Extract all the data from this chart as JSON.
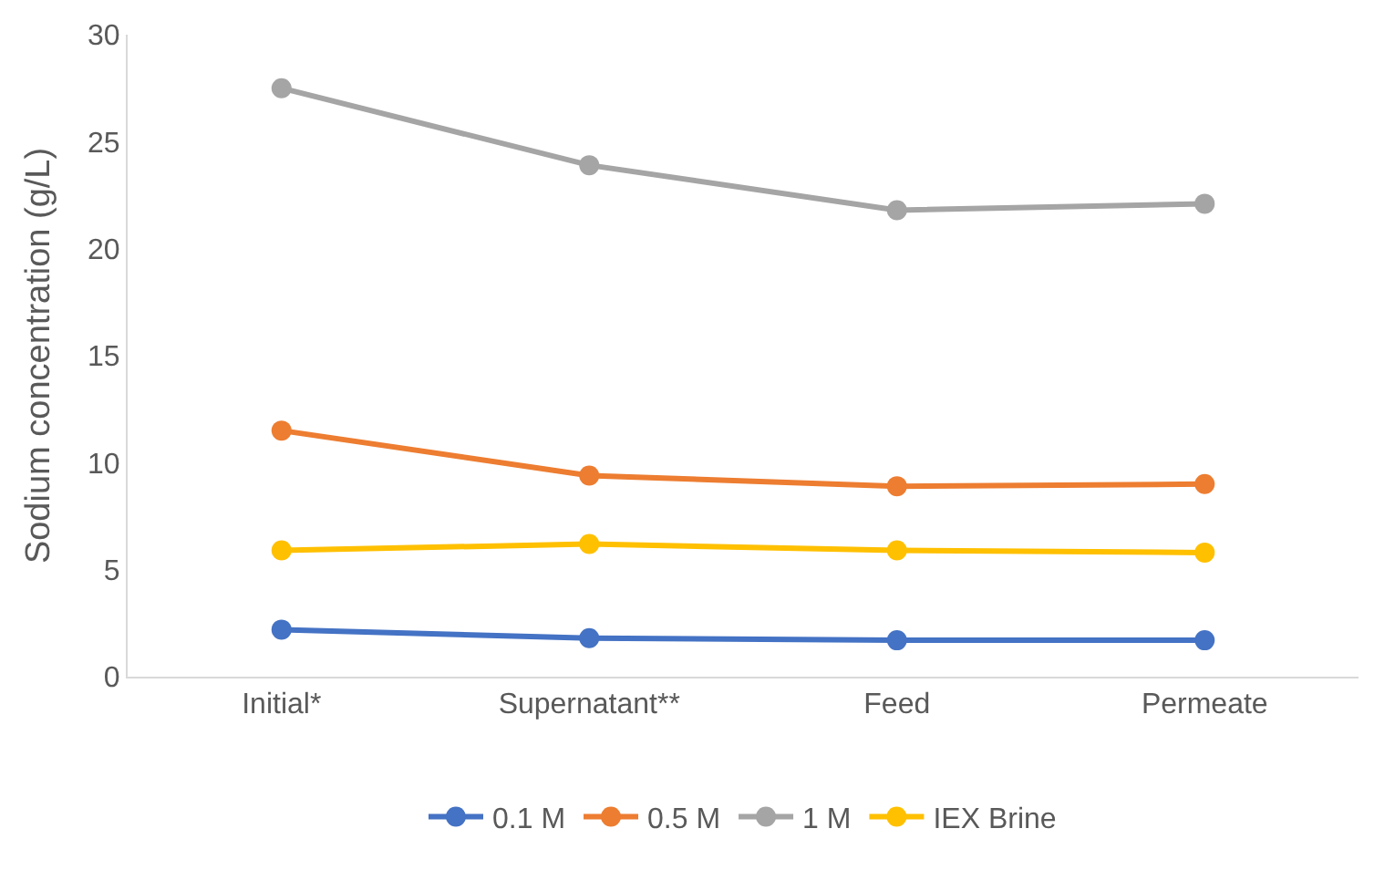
{
  "chart_data": {
    "type": "line",
    "ylabel": "Sodium concentration (g/L)",
    "categories": [
      "Initial*",
      "Supernatant**",
      "Feed",
      "Permeate"
    ],
    "series": [
      {
        "name": "0.1 M",
        "color": "#4472c4",
        "values": [
          2.2,
          1.8,
          1.7,
          1.7
        ]
      },
      {
        "name": "0.5 M",
        "color": "#ed7d31",
        "values": [
          11.5,
          9.4,
          8.9,
          9.0
        ]
      },
      {
        "name": "1 M",
        "color": "#a5a5a5",
        "values": [
          27.5,
          23.9,
          21.8,
          22.1
        ]
      },
      {
        "name": "IEX Brine",
        "color": "#ffc000",
        "values": [
          5.9,
          6.2,
          5.9,
          5.8
        ]
      }
    ],
    "ylim": [
      0,
      30
    ],
    "yticks": [
      0,
      5,
      10,
      15,
      20,
      25,
      30
    ],
    "grid": false,
    "legend": "bottom",
    "marker": "circle",
    "line_style": "solid"
  }
}
